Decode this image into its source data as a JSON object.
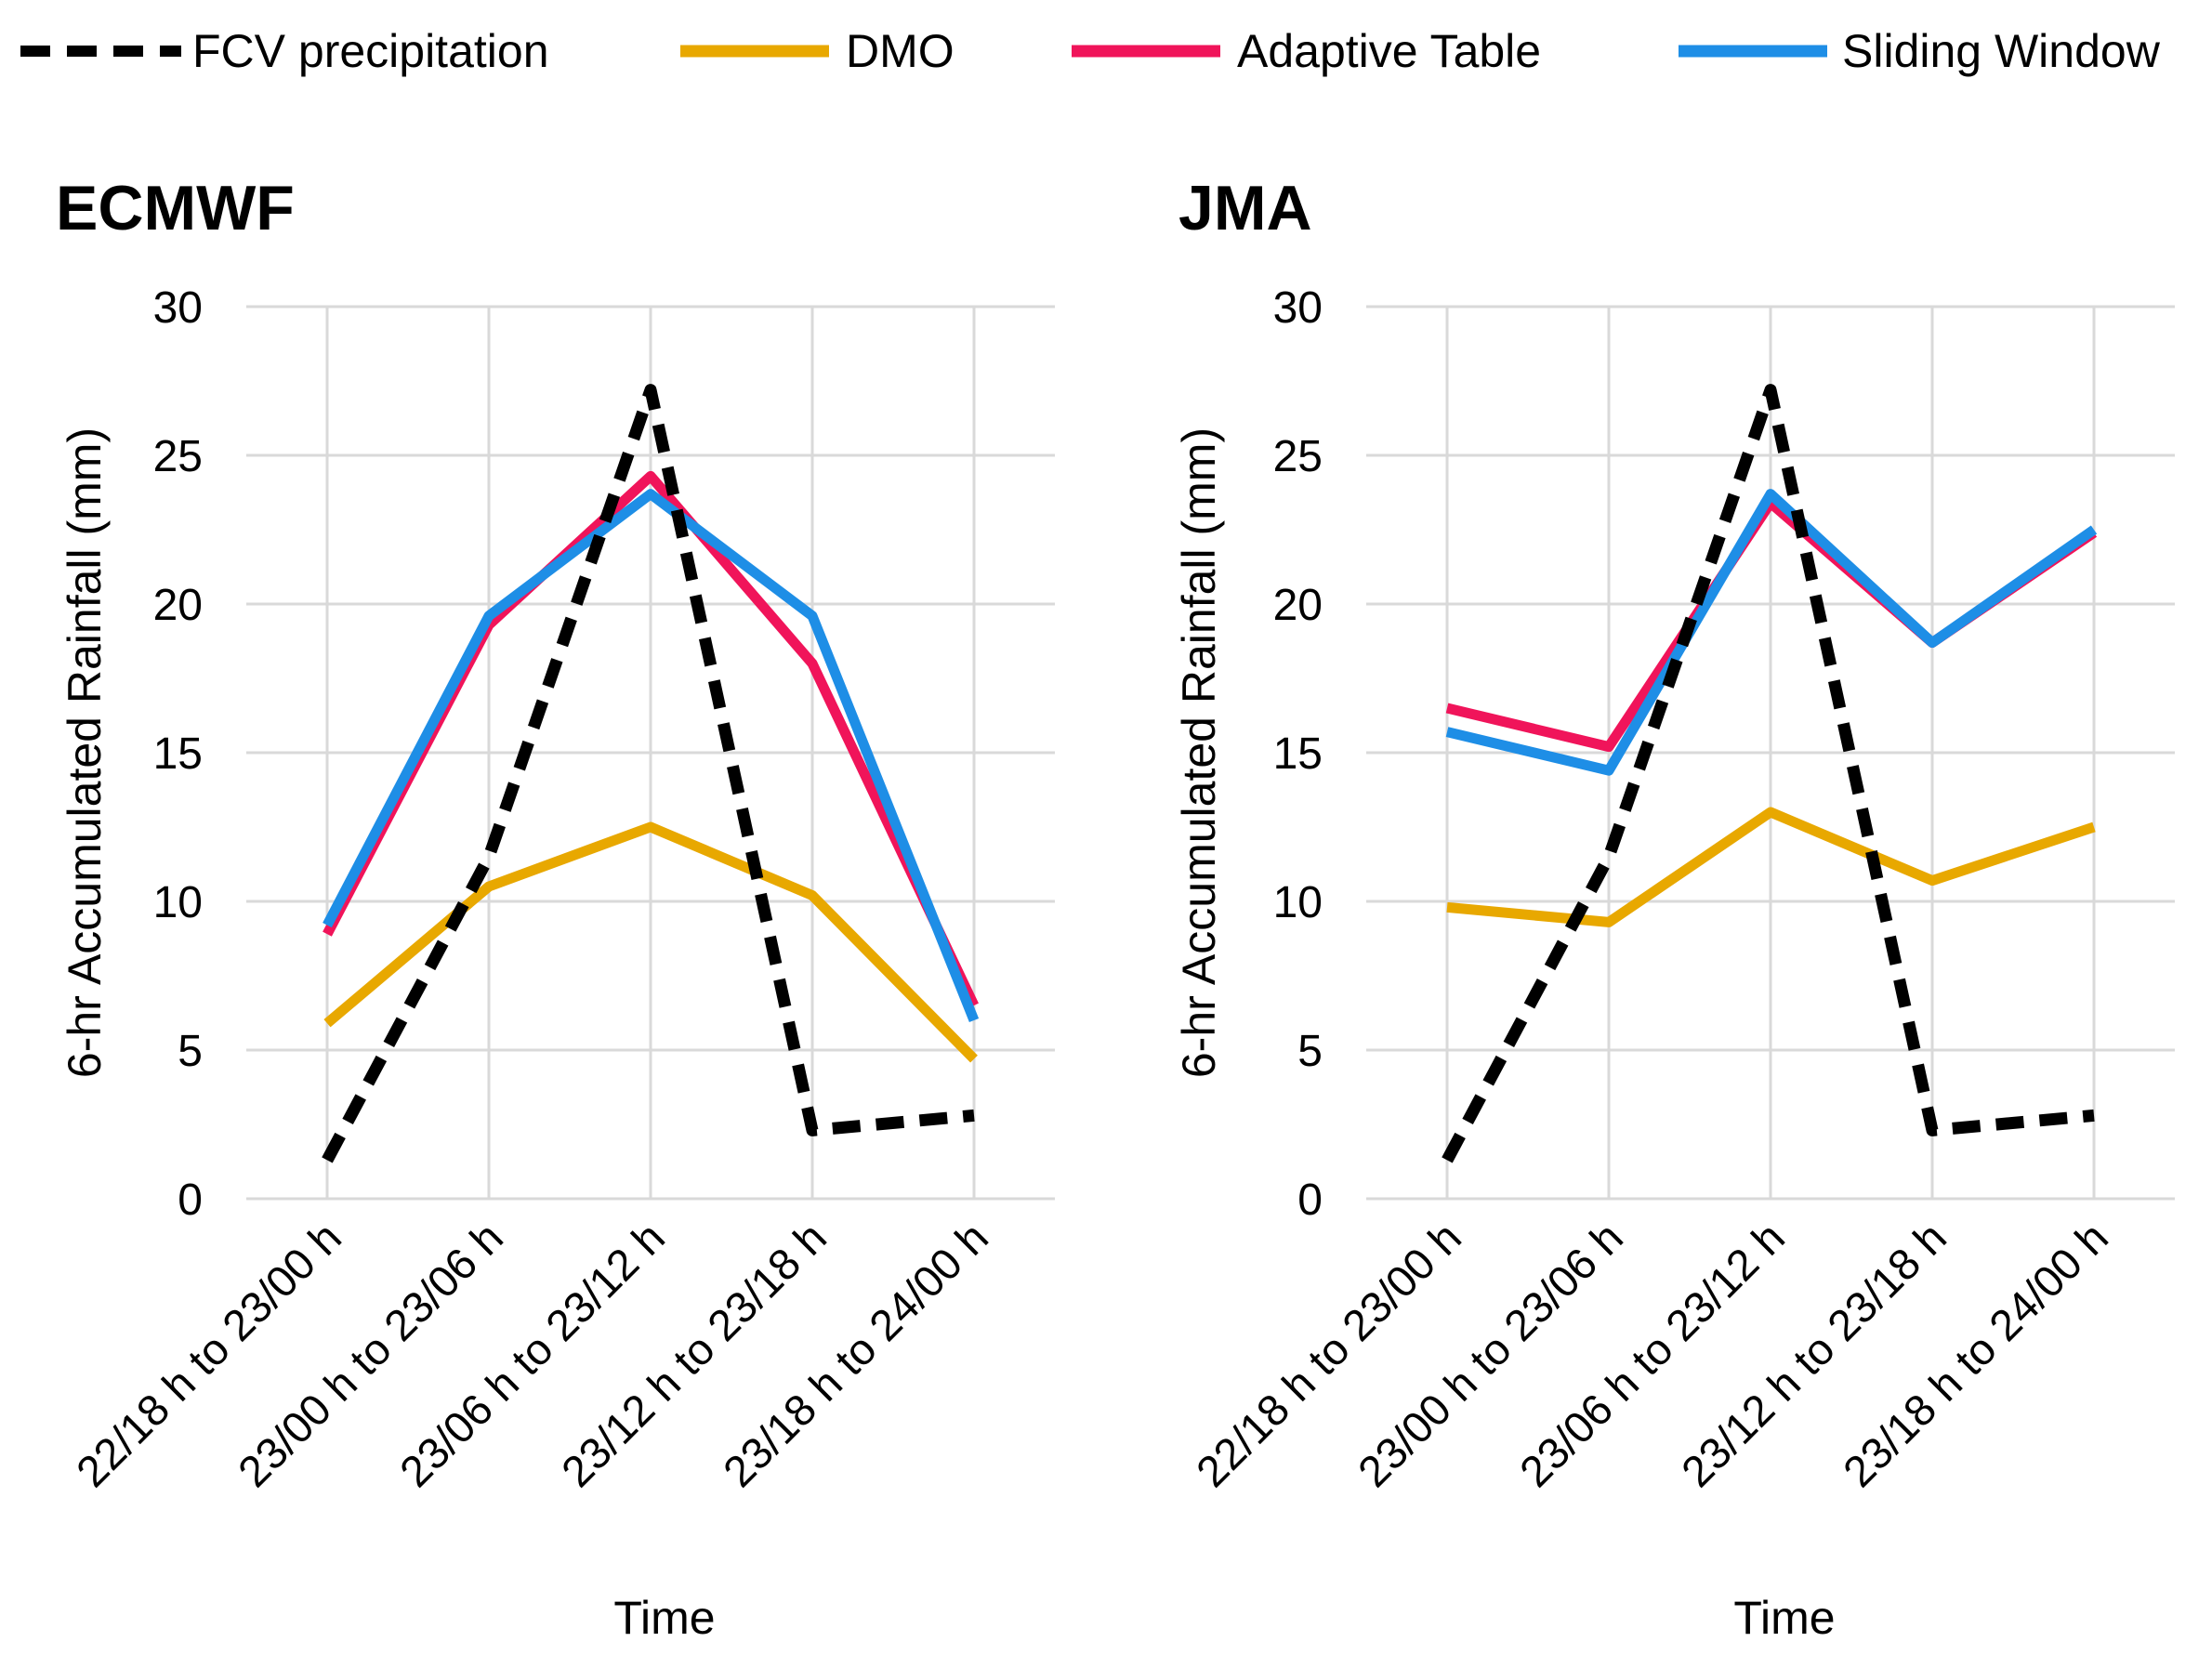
{
  "legend": [
    {
      "name": "FCV precipitation",
      "color": "#000000",
      "dashed": true
    },
    {
      "name": "DMO",
      "color": "#E8A800",
      "dashed": false
    },
    {
      "name": "Adaptive Table",
      "color": "#F0145A",
      "dashed": false
    },
    {
      "name": "Sliding Window",
      "color": "#1E8EE6",
      "dashed": false
    }
  ],
  "chart_data": [
    {
      "type": "line",
      "title": "ECMWF",
      "xlabel": "Time",
      "ylabel": "6-hr Accumulated Rainfall (mm)",
      "ylim": [
        0,
        30
      ],
      "yticks": [
        0,
        5,
        10,
        15,
        20,
        25,
        30
      ],
      "categories": [
        "22/18 h to 23/00 h",
        "23/00 h to 23/06 h",
        "23/06 h to 23/12 h",
        "23/12 h to 23/18 h",
        "23/18 h to 24/00 h"
      ],
      "series": [
        {
          "name": "DMO",
          "values": [
            5.9,
            10.5,
            12.5,
            10.2,
            4.7
          ]
        },
        {
          "name": "Adaptive Table",
          "values": [
            8.9,
            19.3,
            24.3,
            18.0,
            6.5
          ]
        },
        {
          "name": "Sliding Window",
          "values": [
            9.2,
            19.6,
            23.7,
            19.6,
            6.0
          ]
        },
        {
          "name": "FCV precipitation",
          "values": [
            1.3,
            11.5,
            27.2,
            2.3,
            2.8
          ]
        }
      ]
    },
    {
      "type": "line",
      "title": "JMA",
      "xlabel": "Time",
      "ylabel": "6-hr Accumulated Rainfall (mm)",
      "ylim": [
        0,
        30
      ],
      "yticks": [
        0,
        5,
        10,
        15,
        20,
        25,
        30
      ],
      "categories": [
        "22/18 h to 23/00 h",
        "23/00 h to 23/06 h",
        "23/06 h to 23/12 h",
        "23/12 h to 23/18 h",
        "23/18 h to 24/00 h"
      ],
      "series": [
        {
          "name": "DMO",
          "values": [
            9.8,
            9.3,
            13.0,
            10.7,
            12.5
          ]
        },
        {
          "name": "Adaptive Table",
          "values": [
            16.5,
            15.2,
            23.4,
            18.7,
            22.4
          ]
        },
        {
          "name": "Sliding Window",
          "values": [
            15.7,
            14.4,
            23.7,
            18.7,
            22.5
          ]
        },
        {
          "name": "FCV precipitation",
          "values": [
            1.3,
            11.5,
            27.2,
            2.3,
            2.8
          ]
        }
      ]
    }
  ]
}
